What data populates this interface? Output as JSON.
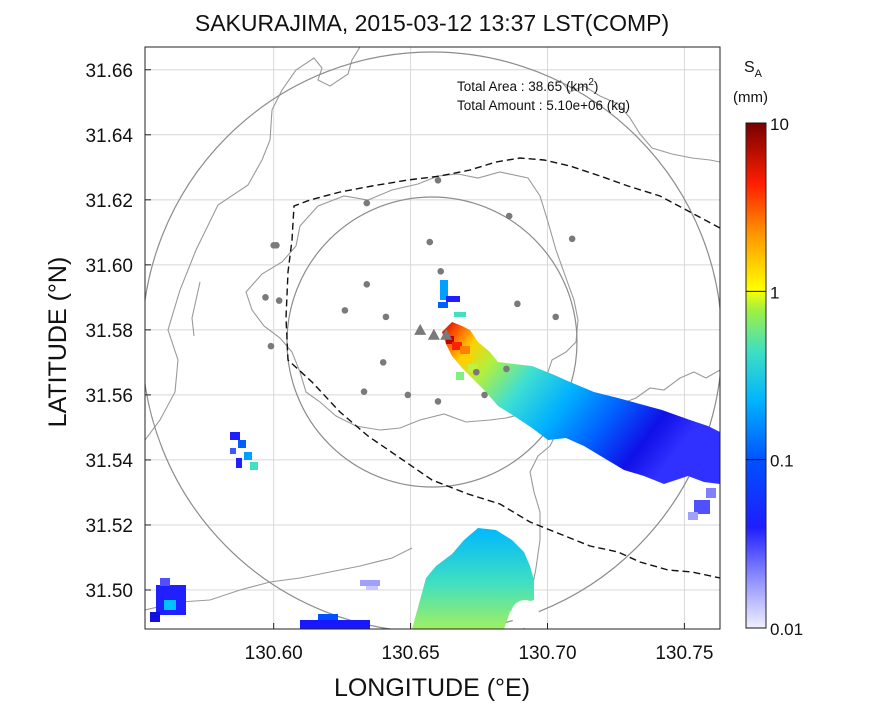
{
  "title": "SAKURAJIMA, 2015-03-12 13:37 LST(COMP)",
  "xlabel": "LONGITUDE (°E)",
  "ylabel": "LATITUDE (°N)",
  "annotation": {
    "area_label": "Total Area   : 38.65 (km",
    "area_sup": "2",
    "area_close": ")",
    "amount_label": "Total Amount : 5.10e+06 (kg)"
  },
  "colorbar": {
    "label_main": "S",
    "label_sub": "A",
    "unit": "(mm)",
    "ticks": [
      "10",
      "1",
      "0.1",
      "0.01"
    ],
    "scale": "log",
    "range": [
      0.01,
      10
    ],
    "colors": [
      "#f0f0ff",
      "#0000ff",
      "#00c8ff",
      "#ffff00",
      "#ff0000",
      "#800000"
    ]
  },
  "chart_data": {
    "type": "map",
    "xlim": [
      130.553,
      130.763
    ],
    "ylim": [
      31.488,
      31.667
    ],
    "x_ticks": [
      "130.60",
      "130.65",
      "130.70",
      "130.75"
    ],
    "x_values": [
      130.6,
      130.65,
      130.7,
      130.75
    ],
    "y_ticks": [
      "31.66",
      "31.64",
      "31.62",
      "31.60",
      "31.58",
      "31.56",
      "31.54",
      "31.52",
      "31.50"
    ],
    "y_values": [
      31.66,
      31.64,
      31.62,
      31.6,
      31.58,
      31.56,
      31.54,
      31.52,
      31.5
    ],
    "grid": true,
    "volcano_vents": [
      [
        130.6535,
        31.58
      ],
      [
        130.6585,
        31.5785
      ],
      [
        130.663,
        31.5785
      ]
    ],
    "stations": [
      [
        130.66,
        31.626
      ],
      [
        130.634,
        31.619
      ],
      [
        130.686,
        31.615
      ],
      [
        130.6,
        31.606
      ],
      [
        130.601,
        31.606
      ],
      [
        130.657,
        31.607
      ],
      [
        130.709,
        31.608
      ],
      [
        130.661,
        31.598
      ],
      [
        130.597,
        31.59
      ],
      [
        130.602,
        31.589
      ],
      [
        130.634,
        31.594
      ],
      [
        130.626,
        31.586
      ],
      [
        130.641,
        31.584
      ],
      [
        130.689,
        31.588
      ],
      [
        130.703,
        31.584
      ],
      [
        130.599,
        31.575
      ],
      [
        130.64,
        31.57
      ],
      [
        130.674,
        31.567
      ],
      [
        130.685,
        31.568
      ],
      [
        130.633,
        31.561
      ],
      [
        130.649,
        31.56
      ],
      [
        130.66,
        31.558
      ],
      [
        130.677,
        31.56
      ]
    ]
  }
}
